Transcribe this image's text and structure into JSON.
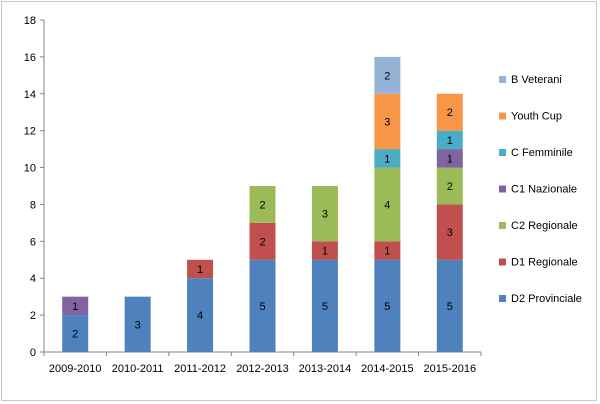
{
  "chart_data": {
    "type": "bar",
    "stacked": true,
    "categories": [
      "2009-2010",
      "2010-2011",
      "2011-2012",
      "2012-2013",
      "2013-2014",
      "2014-2015",
      "2015-2016"
    ],
    "ylim": [
      0,
      18
    ],
    "yticks": [
      0,
      2,
      4,
      6,
      8,
      10,
      12,
      14,
      16,
      18
    ],
    "grid": false,
    "legend_position": "right",
    "series": [
      {
        "name": "D2 Provinciale",
        "color": "#4f81bd",
        "values": [
          2,
          3,
          4,
          5,
          5,
          5,
          5
        ]
      },
      {
        "name": "D1 Regionale",
        "color": "#c0504d",
        "values": [
          0,
          0,
          1,
          2,
          1,
          1,
          3
        ]
      },
      {
        "name": "C2 Regionale",
        "color": "#9bbb59",
        "values": [
          0,
          0,
          0,
          2,
          3,
          4,
          2
        ]
      },
      {
        "name": "C1 Nazionale",
        "color": "#8064a2",
        "values": [
          1,
          0,
          0,
          0,
          0,
          0,
          1
        ]
      },
      {
        "name": "C Femminile",
        "color": "#4bacc6",
        "values": [
          0,
          0,
          0,
          0,
          0,
          1,
          1
        ]
      },
      {
        "name": "Youth Cup",
        "color": "#f79646",
        "values": [
          0,
          0,
          0,
          0,
          0,
          3,
          2
        ]
      },
      {
        "name": "B Veterani",
        "color": "#95b3d7",
        "values": [
          0,
          0,
          0,
          0,
          0,
          2,
          0
        ]
      }
    ]
  }
}
